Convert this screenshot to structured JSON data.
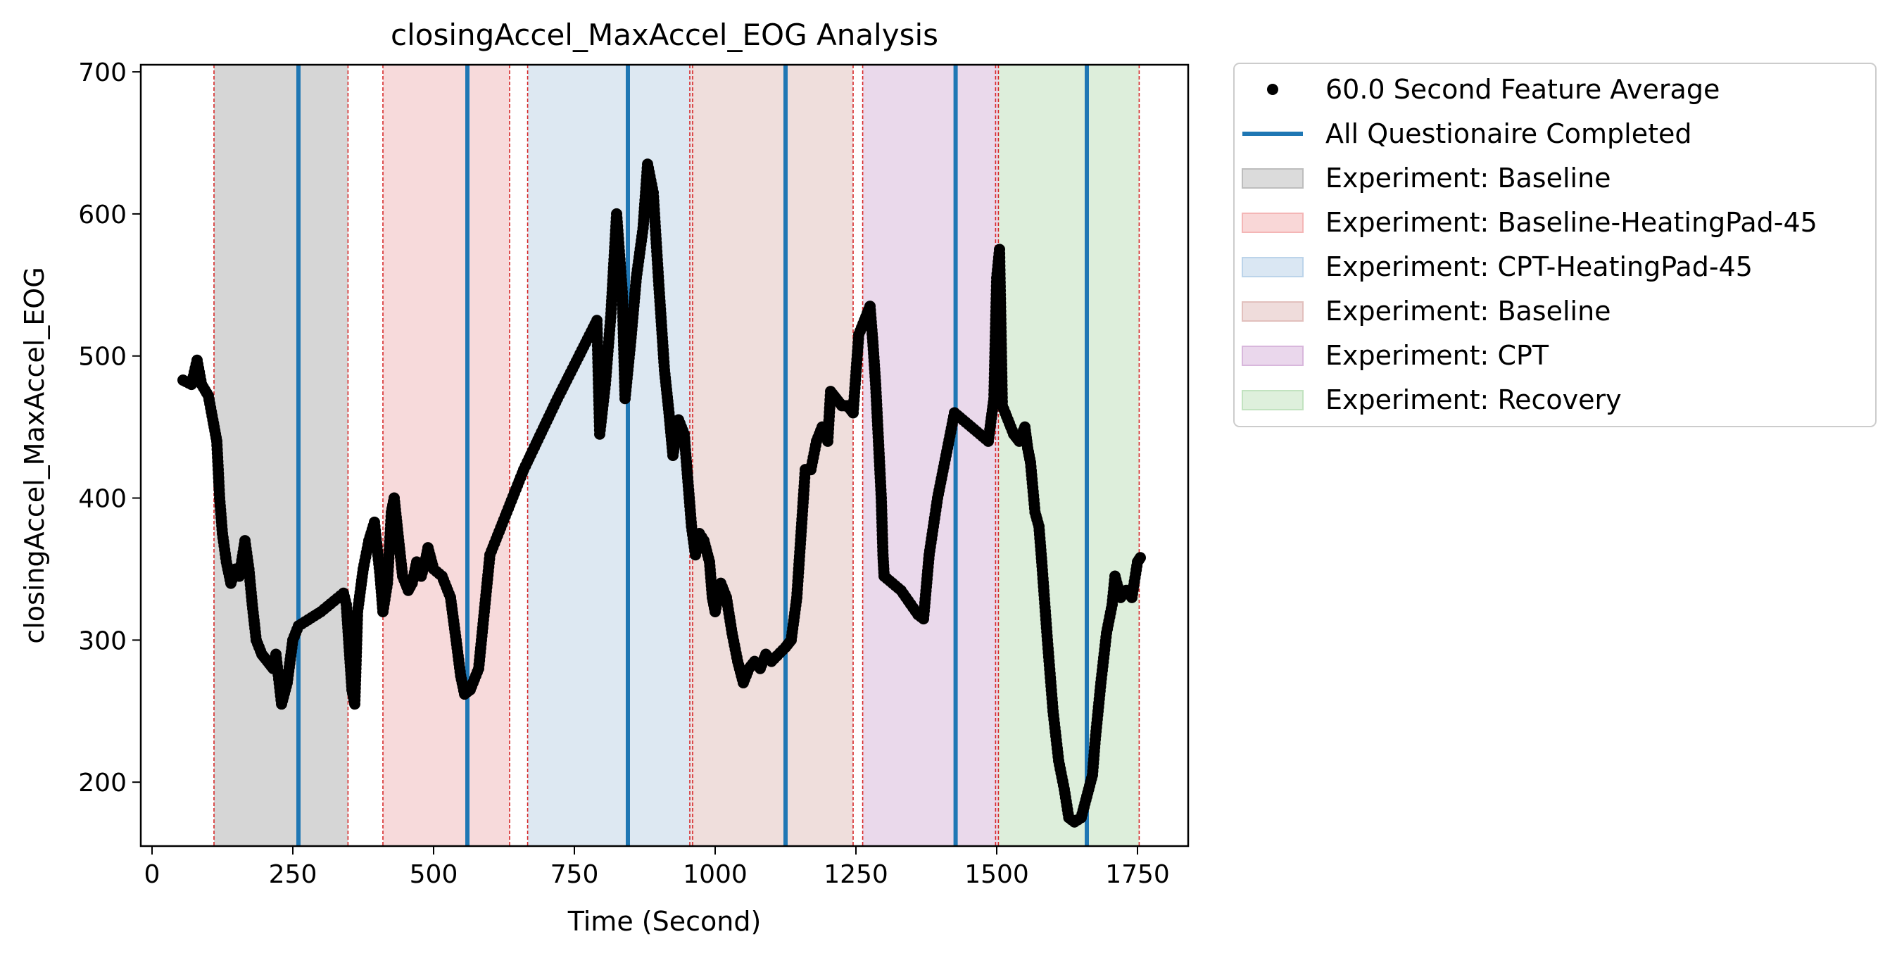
{
  "chart_data": {
    "type": "scatter",
    "title": "closingAccel_MaxAccel_EOG Analysis",
    "xlabel": "Time (Second)",
    "ylabel": "closingAccel_MaxAccel_EOG",
    "xlim": [
      -20,
      1840
    ],
    "ylim": [
      155,
      705
    ],
    "xticks": [
      0,
      250,
      500,
      750,
      1000,
      1250,
      1500,
      1750
    ],
    "yticks": [
      200,
      300,
      400,
      500,
      600,
      700
    ],
    "grid": false,
    "legend_position": "outside-right-top",
    "legend": [
      {
        "label": "60.0 Second Feature Average",
        "kind": "marker",
        "color": "#000000"
      },
      {
        "label": "All Questionaire Completed",
        "kind": "line",
        "color": "#1f77b4"
      },
      {
        "label": "Experiment: Baseline",
        "kind": "patch",
        "color": "#bdbdbd"
      },
      {
        "label": "Experiment: Baseline-HeatingPad-45",
        "kind": "patch",
        "color": "#f4b6b6"
      },
      {
        "label": "Experiment: CPT-HeatingPad-45",
        "kind": "patch",
        "color": "#bcd4ea"
      },
      {
        "label": "Experiment: Baseline",
        "kind": "patch",
        "color": "#e2c0bd"
      },
      {
        "label": "Experiment: CPT",
        "kind": "patch",
        "color": "#d8b7dc"
      },
      {
        "label": "Experiment: Recovery",
        "kind": "patch",
        "color": "#c2e3c0"
      }
    ],
    "experiment_spans": [
      {
        "label": "Experiment: Baseline",
        "start": 110,
        "end": 348,
        "color": "#d6d6d6"
      },
      {
        "label": "Experiment: Baseline-HeatingPad-45",
        "start": 410,
        "end": 635,
        "color": "#f7dadb"
      },
      {
        "label": "Experiment: CPT-HeatingPad-45",
        "start": 667,
        "end": 957,
        "color": "#dde8f2"
      },
      {
        "label": "Experiment: Baseline",
        "start": 957,
        "end": 1245,
        "color": "#efdedc"
      },
      {
        "label": "Experiment: CPT",
        "start": 1262,
        "end": 1503,
        "color": "#ead9eb"
      },
      {
        "label": "Experiment: Recovery",
        "start": 1503,
        "end": 1753,
        "color": "#ddeedb"
      }
    ],
    "boundary_lines": [
      110,
      348,
      410,
      635,
      667,
      955,
      960,
      1245,
      1262,
      1498,
      1503,
      1753
    ],
    "questionnaire_completed": [
      260,
      560,
      845,
      1125,
      1427,
      1660
    ],
    "series": [
      {
        "name": "60.0 Second Feature Average",
        "anchors": [
          [
            55,
            483
          ],
          [
            70,
            480
          ],
          [
            80,
            497
          ],
          [
            88,
            480
          ],
          [
            100,
            472
          ],
          [
            108,
            455
          ],
          [
            115,
            440
          ],
          [
            120,
            400
          ],
          [
            125,
            375
          ],
          [
            132,
            355
          ],
          [
            140,
            340
          ],
          [
            148,
            350
          ],
          [
            155,
            345
          ],
          [
            165,
            370
          ],
          [
            172,
            350
          ],
          [
            178,
            325
          ],
          [
            185,
            300
          ],
          [
            195,
            290
          ],
          [
            205,
            285
          ],
          [
            215,
            280
          ],
          [
            220,
            290
          ],
          [
            230,
            255
          ],
          [
            240,
            270
          ],
          [
            250,
            300
          ],
          [
            260,
            310
          ],
          [
            300,
            320
          ],
          [
            340,
            333
          ],
          [
            345,
            325
          ],
          [
            350,
            295
          ],
          [
            355,
            265
          ],
          [
            360,
            255
          ],
          [
            362,
            280
          ],
          [
            365,
            320
          ],
          [
            375,
            350
          ],
          [
            385,
            370
          ],
          [
            395,
            383
          ],
          [
            405,
            345
          ],
          [
            410,
            320
          ],
          [
            418,
            340
          ],
          [
            425,
            390
          ],
          [
            430,
            400
          ],
          [
            438,
            370
          ],
          [
            445,
            345
          ],
          [
            455,
            335
          ],
          [
            462,
            340
          ],
          [
            470,
            355
          ],
          [
            478,
            345
          ],
          [
            485,
            355
          ],
          [
            490,
            365
          ],
          [
            500,
            350
          ],
          [
            515,
            345
          ],
          [
            530,
            330
          ],
          [
            540,
            300
          ],
          [
            548,
            275
          ],
          [
            555,
            262
          ],
          [
            565,
            265
          ],
          [
            580,
            280
          ],
          [
            590,
            320
          ],
          [
            600,
            360
          ],
          [
            660,
            420
          ],
          [
            720,
            470
          ],
          [
            790,
            525
          ],
          [
            795,
            445
          ],
          [
            805,
            480
          ],
          [
            815,
            530
          ],
          [
            825,
            600
          ],
          [
            835,
            545
          ],
          [
            840,
            470
          ],
          [
            850,
            510
          ],
          [
            860,
            555
          ],
          [
            872,
            590
          ],
          [
            880,
            635
          ],
          [
            890,
            615
          ],
          [
            900,
            550
          ],
          [
            910,
            490
          ],
          [
            918,
            460
          ],
          [
            925,
            430
          ],
          [
            935,
            455
          ],
          [
            945,
            445
          ],
          [
            950,
            420
          ],
          [
            958,
            380
          ],
          [
            965,
            360
          ],
          [
            972,
            375
          ],
          [
            980,
            370
          ],
          [
            990,
            355
          ],
          [
            995,
            330
          ],
          [
            1000,
            320
          ],
          [
            1010,
            340
          ],
          [
            1020,
            330
          ],
          [
            1030,
            305
          ],
          [
            1040,
            285
          ],
          [
            1050,
            270
          ],
          [
            1060,
            280
          ],
          [
            1070,
            285
          ],
          [
            1080,
            280
          ],
          [
            1090,
            290
          ],
          [
            1100,
            285
          ],
          [
            1125,
            295
          ],
          [
            1135,
            300
          ],
          [
            1145,
            330
          ],
          [
            1160,
            420
          ],
          [
            1170,
            420
          ],
          [
            1180,
            440
          ],
          [
            1190,
            450
          ],
          [
            1200,
            440
          ],
          [
            1205,
            475
          ],
          [
            1215,
            470
          ],
          [
            1225,
            465
          ],
          [
            1235,
            465
          ],
          [
            1245,
            460
          ],
          [
            1255,
            515
          ],
          [
            1265,
            525
          ],
          [
            1275,
            535
          ],
          [
            1280,
            510
          ],
          [
            1285,
            480
          ],
          [
            1290,
            440
          ],
          [
            1295,
            400
          ],
          [
            1298,
            360
          ],
          [
            1300,
            345
          ],
          [
            1330,
            335
          ],
          [
            1360,
            318
          ],
          [
            1370,
            315
          ],
          [
            1380,
            360
          ],
          [
            1395,
            400
          ],
          [
            1410,
            430
          ],
          [
            1425,
            460
          ],
          [
            1440,
            455
          ],
          [
            1470,
            445
          ],
          [
            1485,
            440
          ],
          [
            1495,
            470
          ],
          [
            1500,
            555
          ],
          [
            1505,
            575
          ],
          [
            1510,
            465
          ],
          [
            1520,
            455
          ],
          [
            1530,
            445
          ],
          [
            1540,
            440
          ],
          [
            1550,
            450
          ],
          [
            1555,
            435
          ],
          [
            1560,
            425
          ],
          [
            1568,
            390
          ],
          [
            1575,
            380
          ],
          [
            1580,
            355
          ],
          [
            1590,
            300
          ],
          [
            1600,
            250
          ],
          [
            1610,
            215
          ],
          [
            1620,
            195
          ],
          [
            1628,
            175
          ],
          [
            1638,
            172
          ],
          [
            1650,
            175
          ],
          [
            1660,
            190
          ],
          [
            1670,
            205
          ],
          [
            1675,
            230
          ],
          [
            1685,
            270
          ],
          [
            1695,
            305
          ],
          [
            1705,
            325
          ],
          [
            1710,
            345
          ],
          [
            1720,
            330
          ],
          [
            1730,
            335
          ],
          [
            1740,
            330
          ],
          [
            1750,
            355
          ],
          [
            1755,
            358
          ]
        ]
      }
    ]
  }
}
